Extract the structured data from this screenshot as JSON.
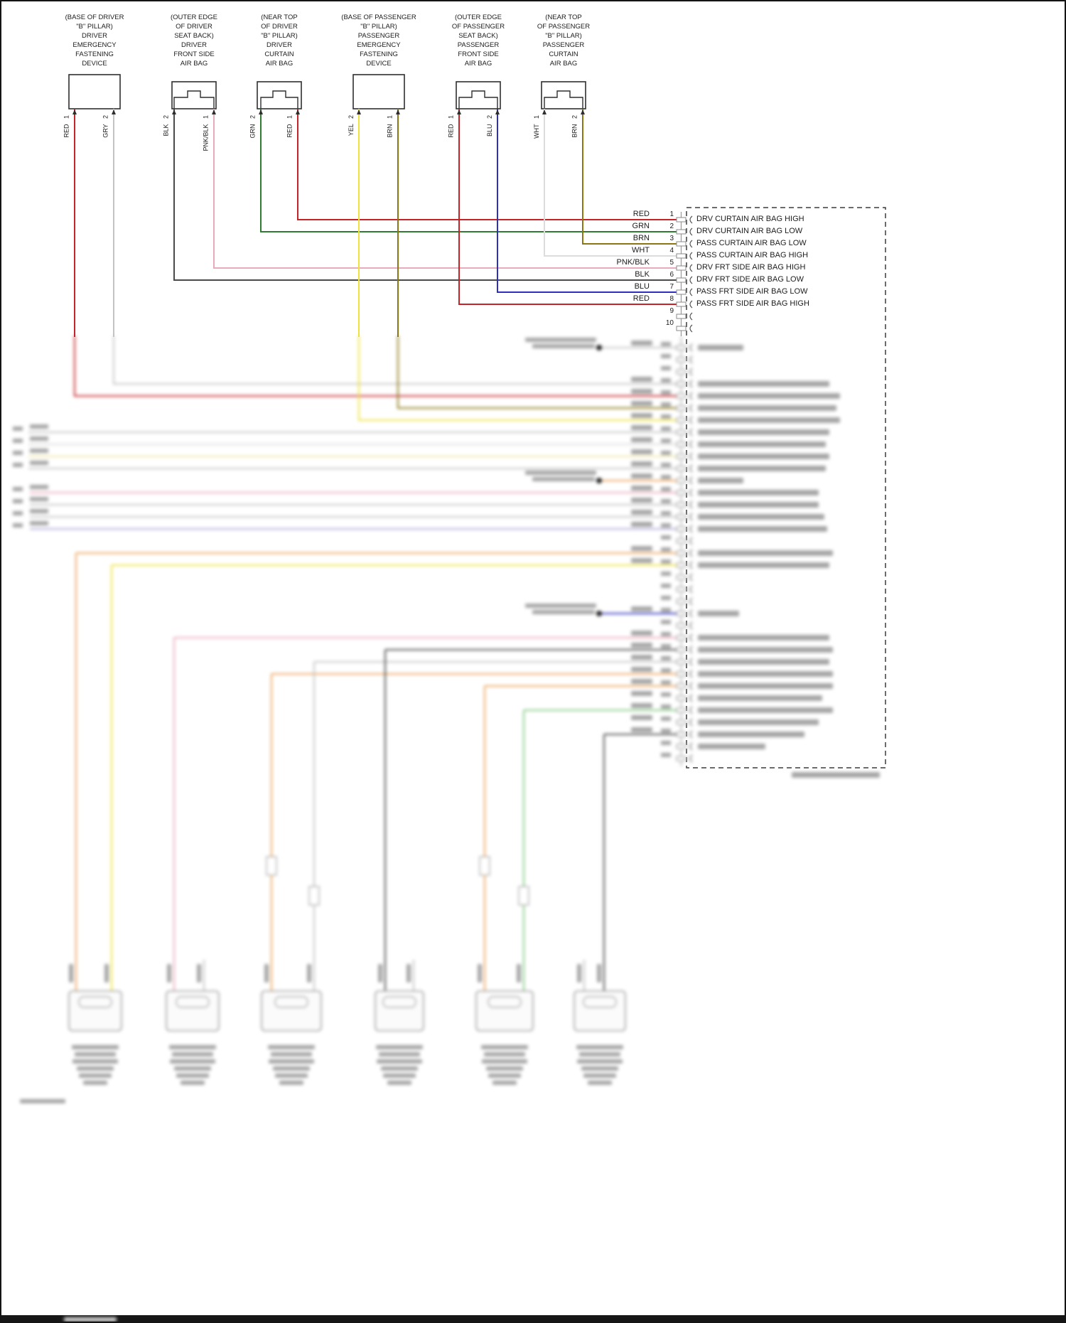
{
  "palette": {
    "red": "#c42428",
    "green": "#2f7d32",
    "olive": "#8a7612",
    "white": "#dcdcdc",
    "gray": "#c4c4c4",
    "dark_gray": "#4a4a4a",
    "pink": "#e9aabb",
    "blue": "#2f2fbe",
    "yellow": "#efe23c",
    "orange": "#eba45c",
    "lavender": "#b3a9d6",
    "lt_green": "#82c882",
    "pale_yellow": "#efe9a8",
    "line_black": "#2e2e2e"
  },
  "components": [
    {
      "label": "(BASE OF DRIVER\n\"B\" PILLAR)\nDRIVER\nEMERGENCY\nFASTENING\nDEVICE",
      "pins": [
        "RED   1",
        "GRY   2"
      ]
    },
    {
      "label": "(OUTER EDGE\nOF DRIVER\nSEAT BACK)\nDRIVER\nFRONT SIDE\nAIR BAG",
      "pins": [
        "BLK   2",
        "PNK/BLK   1"
      ]
    },
    {
      "label": "(NEAR TOP\nOF DRIVER\n\"B\" PILLAR)\nDRIVER\nCURTAIN\nAIR BAG",
      "pins": [
        "GRN   2",
        "RED   1"
      ]
    },
    {
      "label": "(BASE OF PASSENGER\n\"B\" PILLAR)\nPASSENGER\nEMERGENCY\nFASTENING\nDEVICE",
      "pins": [
        "YEL   2",
        "BRN   1"
      ]
    },
    {
      "label": "(OUTER EDGE\nOF PASSENGER\nSEAT BACK)\nPASSENGER\nFRONT SIDE\nAIR BAG",
      "pins": [
        "RED   1",
        "BLU   2"
      ]
    },
    {
      "label": "(NEAR TOP\nOF PASSENGER\n\"B\" PILLAR)\nPASSENGER\nCURTAIN\nAIR BAG",
      "pins": [
        "WHT   1",
        "BRN   2"
      ]
    }
  ],
  "module": {
    "pins": [
      {
        "wire": "RED",
        "num": "1",
        "label": "DRV CURTAIN AIR BAG HIGH"
      },
      {
        "wire": "GRN",
        "num": "2",
        "label": "DRV CURTAIN AIR BAG LOW"
      },
      {
        "wire": "BRN",
        "num": "3",
        "label": "PASS CURTAIN AIR BAG LOW"
      },
      {
        "wire": "WHT",
        "num": "4",
        "label": "PASS CURTAIN AIR BAG HIGH"
      },
      {
        "wire": "PNK/BLK",
        "num": "5",
        "label": "DRV FRT SIDE AIR BAG HIGH"
      },
      {
        "wire": "BLK",
        "num": "6",
        "label": "DRV FRT SIDE AIR BAG LOW"
      },
      {
        "wire": "BLU",
        "num": "7",
        "label": "PASS FRT SIDE AIR BAG LOW"
      },
      {
        "wire": "RED",
        "num": "8",
        "label": "PASS FRT SIDE AIR BAG HIGH"
      },
      {
        "wire": "",
        "num": "9",
        "label": ""
      },
      {
        "wire": "",
        "num": "10",
        "label": ""
      }
    ]
  }
}
